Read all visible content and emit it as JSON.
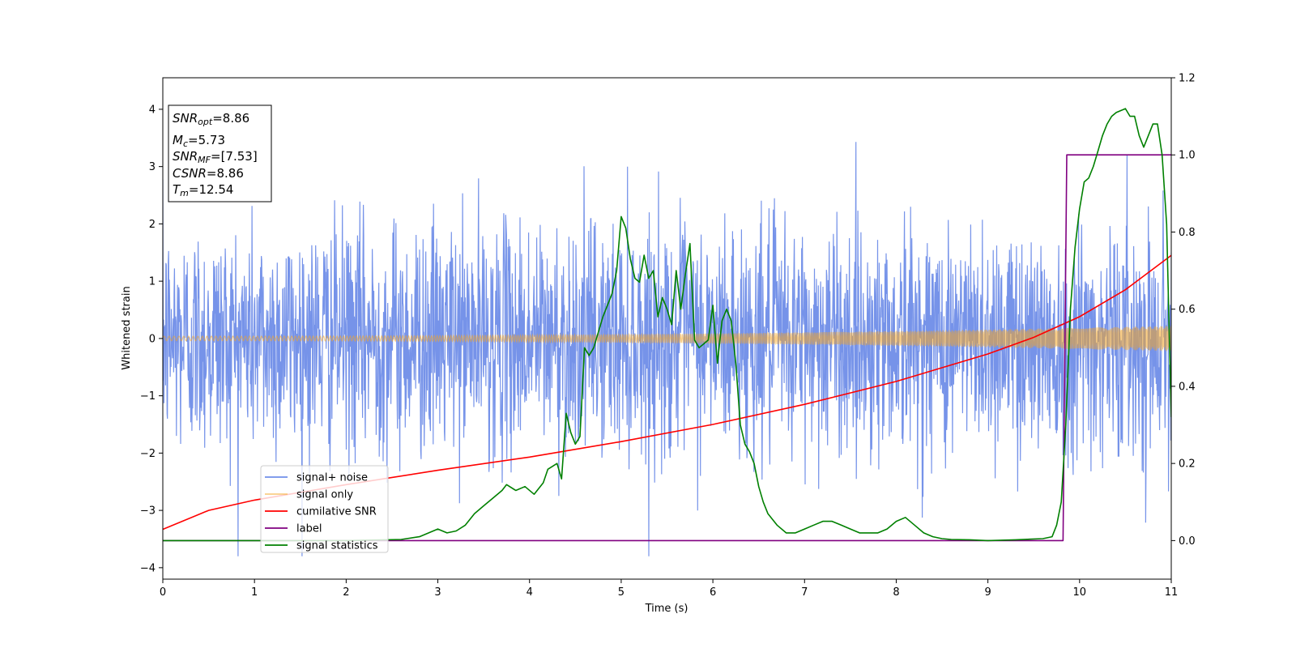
{
  "chart_data": {
    "type": "line",
    "xlabel": "Time (s)",
    "ylabel": "Whitened strain",
    "xlim": [
      0,
      11
    ],
    "ylim": [
      -4.2,
      4.55
    ],
    "y2lim": [
      -0.1,
      1.2
    ],
    "x_ticks": [
      0,
      1,
      2,
      3,
      4,
      5,
      6,
      7,
      8,
      9,
      10,
      11
    ],
    "y_ticks": [
      -4,
      -3,
      -2,
      -1,
      0,
      1,
      2,
      3,
      4
    ],
    "y2_ticks": [
      "0.0",
      "0.2",
      "0.4",
      "0.6",
      "0.8",
      "1.0",
      "1.2"
    ],
    "grid": false,
    "legend_position": "lower-left",
    "annotation": {
      "lines": [
        {
          "var": "SNR",
          "sub": "opt",
          "value": "=8.86"
        },
        {
          "var": "M",
          "sub": "c",
          "value": "=5.73"
        },
        {
          "var": "SNR",
          "sub": "MF",
          "value": "=[7.53]"
        },
        {
          "var": "CSNR",
          "sub": "",
          "value": "=8.86"
        },
        {
          "var": "T",
          "sub": "m",
          "value": "=12.54"
        }
      ]
    },
    "series": [
      {
        "name": "signal+ noise",
        "axis": "left",
        "color": "#4169e1",
        "kind": "noise",
        "sigma": 1.0,
        "typical_range": [
          -3.5,
          4.15
        ]
      },
      {
        "name": "signal only",
        "axis": "left",
        "color": "#f5a623",
        "kind": "chirp",
        "amplitude_start": 0.04,
        "amplitude_end": 0.22
      },
      {
        "name": "cumilative SNR",
        "axis": "left",
        "color": "#ff0000",
        "x": [
          0,
          0.5,
          1,
          2,
          3,
          4,
          5,
          6,
          7,
          8,
          9,
          9.5,
          10,
          10.5,
          11
        ],
        "y": [
          -3.33,
          -3.0,
          -2.82,
          -2.55,
          -2.3,
          -2.07,
          -1.8,
          -1.5,
          -1.15,
          -0.75,
          -0.27,
          0.02,
          0.38,
          0.85,
          1.45
        ]
      },
      {
        "name": "label",
        "axis": "right",
        "color": "#800080",
        "x": [
          0,
          9.82,
          9.86,
          11
        ],
        "y": [
          0.0,
          0.0,
          1.0,
          1.0
        ]
      },
      {
        "name": "signal statistics",
        "axis": "right",
        "color": "#008000",
        "x": [
          0,
          1.0,
          2.0,
          2.6,
          2.8,
          2.9,
          3.0,
          3.1,
          3.2,
          3.3,
          3.4,
          3.5,
          3.6,
          3.7,
          3.75,
          3.85,
          3.95,
          4.05,
          4.15,
          4.2,
          4.3,
          4.35,
          4.4,
          4.45,
          4.5,
          4.55,
          4.6,
          4.65,
          4.7,
          4.8,
          4.9,
          4.95,
          5.0,
          5.05,
          5.1,
          5.15,
          5.2,
          5.25,
          5.3,
          5.35,
          5.4,
          5.45,
          5.5,
          5.55,
          5.6,
          5.65,
          5.7,
          5.75,
          5.8,
          5.85,
          5.9,
          5.95,
          6.0,
          6.05,
          6.1,
          6.15,
          6.2,
          6.25,
          6.3,
          6.35,
          6.4,
          6.45,
          6.5,
          6.55,
          6.6,
          6.7,
          6.8,
          6.9,
          7.0,
          7.1,
          7.2,
          7.3,
          7.4,
          7.5,
          7.6,
          7.7,
          7.8,
          7.9,
          8.0,
          8.1,
          8.2,
          8.3,
          8.4,
          8.5,
          8.6,
          8.8,
          9.0,
          9.3,
          9.6,
          9.7,
          9.75,
          9.8,
          9.85,
          9.9,
          9.95,
          10.0,
          10.05,
          10.1,
          10.15,
          10.2,
          10.25,
          10.3,
          10.35,
          10.4,
          10.5,
          10.55,
          10.6,
          10.65,
          10.7,
          10.75,
          10.8,
          10.85,
          10.9,
          10.95,
          11.0
        ],
        "y": [
          0.0,
          0.0,
          0.0,
          0.003,
          0.01,
          0.02,
          0.03,
          0.02,
          0.025,
          0.04,
          0.07,
          0.09,
          0.11,
          0.13,
          0.145,
          0.13,
          0.14,
          0.12,
          0.15,
          0.185,
          0.2,
          0.16,
          0.33,
          0.28,
          0.25,
          0.27,
          0.5,
          0.48,
          0.5,
          0.58,
          0.64,
          0.7,
          0.84,
          0.81,
          0.73,
          0.68,
          0.67,
          0.74,
          0.68,
          0.7,
          0.58,
          0.63,
          0.6,
          0.56,
          0.7,
          0.6,
          0.69,
          0.77,
          0.52,
          0.5,
          0.51,
          0.52,
          0.61,
          0.46,
          0.57,
          0.6,
          0.57,
          0.46,
          0.3,
          0.25,
          0.23,
          0.2,
          0.14,
          0.1,
          0.07,
          0.04,
          0.02,
          0.02,
          0.03,
          0.04,
          0.05,
          0.05,
          0.04,
          0.03,
          0.02,
          0.02,
          0.02,
          0.03,
          0.05,
          0.06,
          0.04,
          0.02,
          0.01,
          0.005,
          0.003,
          0.002,
          0.0,
          0.002,
          0.005,
          0.01,
          0.04,
          0.1,
          0.3,
          0.6,
          0.76,
          0.86,
          0.93,
          0.94,
          0.97,
          1.01,
          1.05,
          1.08,
          1.1,
          1.11,
          1.12,
          1.1,
          1.1,
          1.05,
          1.02,
          1.05,
          1.08,
          1.08,
          1.0,
          0.82,
          0.32
        ]
      }
    ]
  }
}
